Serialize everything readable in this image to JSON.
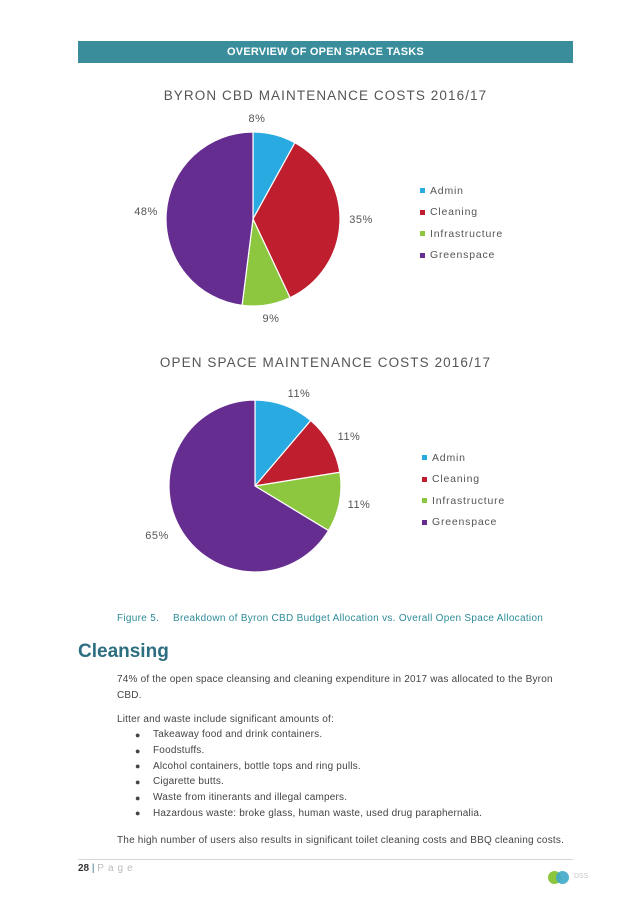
{
  "header": {
    "title": "OVERVIEW OF OPEN SPACE TASKS"
  },
  "chart_data": [
    {
      "type": "pie",
      "title": "BYRON CBD MAINTENANCE COSTS 2016/17",
      "categories": [
        "Admin",
        "Cleaning",
        "Infrastructure",
        "Greenspace"
      ],
      "values": [
        8,
        35,
        9,
        48
      ],
      "labels": [
        "8%",
        "35%",
        "9%",
        "48%"
      ],
      "colors": [
        "#29abe2",
        "#be1e2d",
        "#8dc63f",
        "#662d91"
      ],
      "legend_position": "right"
    },
    {
      "type": "pie",
      "title": "OPEN SPACE MAINTENANCE COSTS 2016/17",
      "categories": [
        "Admin",
        "Cleaning",
        "Infrastructure",
        "Greenspace"
      ],
      "values": [
        11,
        11,
        11,
        65
      ],
      "labels": [
        "11%",
        "11%",
        "11%",
        "65%"
      ],
      "colors": [
        "#29abe2",
        "#be1e2d",
        "#8dc63f",
        "#662d91"
      ],
      "legend_position": "right"
    }
  ],
  "figure": {
    "number": "Figure 5.",
    "caption": "Breakdown of Byron CBD Budget Allocation vs. Overall Open Space Allocation"
  },
  "section": {
    "heading": "Cleansing",
    "intro": "74% of the open space cleansing and cleaning expenditure in 2017 was allocated to the Byron CBD.",
    "list_intro": "Litter and waste include significant amounts of:",
    "bullets": [
      "Takeaway food and drink containers.",
      "Foodstuffs.",
      "Alcohol containers, bottle tops and ring pulls.",
      "Cigarette butts.",
      "Waste from itinerants and illegal campers.",
      "Hazardous waste: broke glass, human waste, used drug paraphernalia."
    ],
    "closing": "The high number of users also results in significant toilet cleaning costs and BBQ cleaning costs."
  },
  "footer": {
    "page_number": "28",
    "separator": "|",
    "page_word": "Page",
    "logo_text": "DSS"
  }
}
